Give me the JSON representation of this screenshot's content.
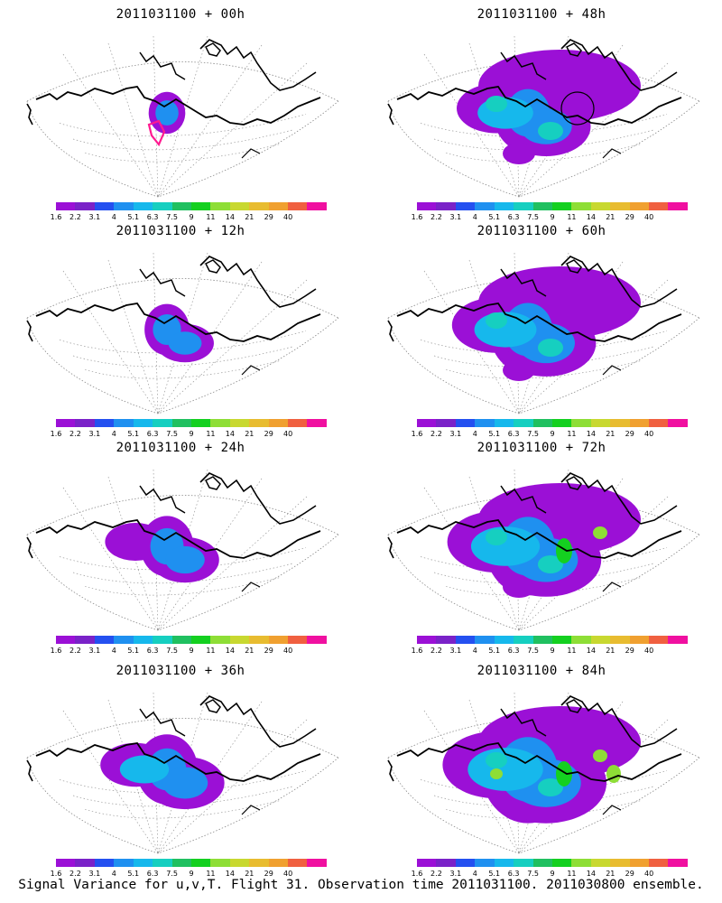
{
  "caption": "Signal Variance for u,v,T. Flight 31. Observation time 2011031100. 2011030800 ensemble.",
  "colorbar": {
    "colors": [
      "#9b10d6",
      "#7a22c8",
      "#2450f0",
      "#1f90f0",
      "#16b8ec",
      "#16cfc0",
      "#20c060",
      "#14d020",
      "#8ede36",
      "#c8d830",
      "#e8bc30",
      "#f0a030",
      "#f06040",
      "#f010a0"
    ],
    "labels": [
      "1.6",
      "2.2",
      "3.1",
      "4",
      "5.1",
      "6.3",
      "7.5",
      "9",
      "11",
      "14",
      "21",
      "29",
      "40"
    ]
  },
  "panels": [
    {
      "title": "2011031100 + 00h",
      "lead_hours": 0,
      "fill_level": 1,
      "flight_track_color": "#ff1a90"
    },
    {
      "title": "2011031100 + 12h",
      "lead_hours": 12,
      "fill_level": 2
    },
    {
      "title": "2011031100 + 24h",
      "lead_hours": 24,
      "fill_level": 3
    },
    {
      "title": "2011031100 + 36h",
      "lead_hours": 36,
      "fill_level": 4
    },
    {
      "title": "2011031100 + 48h",
      "lead_hours": 48,
      "fill_level": 5
    },
    {
      "title": "2011031100 + 60h",
      "lead_hours": 60,
      "fill_level": 6
    },
    {
      "title": "2011031100 + 72h",
      "lead_hours": 72,
      "fill_level": 7
    },
    {
      "title": "2011031100 + 84h",
      "lead_hours": 84,
      "fill_level": 8
    }
  ]
}
